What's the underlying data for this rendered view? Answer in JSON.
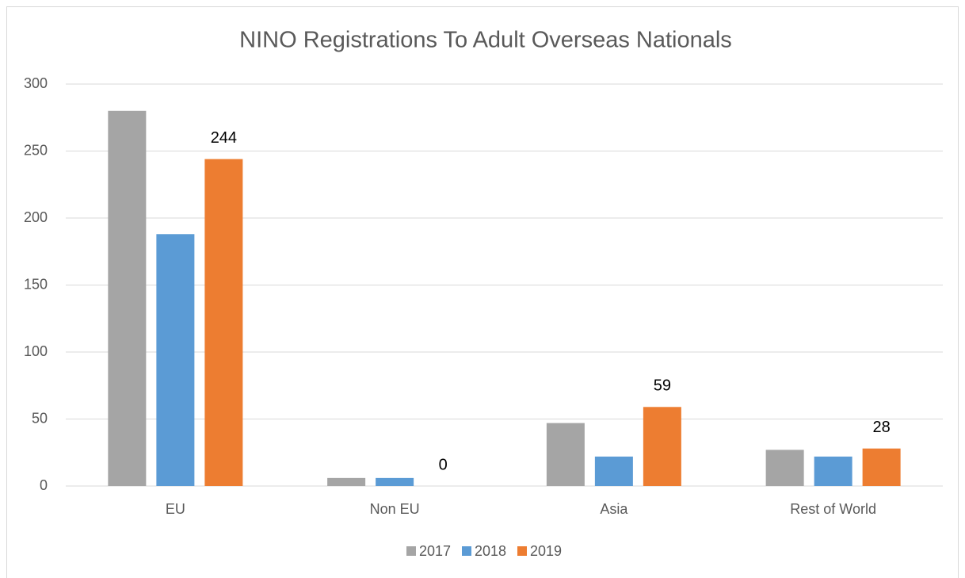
{
  "chart_data": {
    "type": "bar",
    "title": "NINO Registrations To Adult Overseas Nationals",
    "categories": [
      "EU",
      "Non EU",
      "Asia",
      "Rest of World"
    ],
    "series": [
      {
        "name": "2017",
        "color": "#a5a5a5",
        "values": [
          280,
          6,
          47,
          27
        ],
        "show_values": false
      },
      {
        "name": "2018",
        "color": "#5b9bd5",
        "values": [
          188,
          6,
          22,
          22
        ],
        "show_values": false
      },
      {
        "name": "2019",
        "color": "#ed7d31",
        "values": [
          244,
          0,
          59,
          28
        ],
        "show_values": true
      }
    ],
    "ylim": [
      0,
      300
    ],
    "yticks": [
      0,
      50,
      100,
      150,
      200,
      250,
      300
    ],
    "grid": true,
    "legend": "bottom"
  }
}
